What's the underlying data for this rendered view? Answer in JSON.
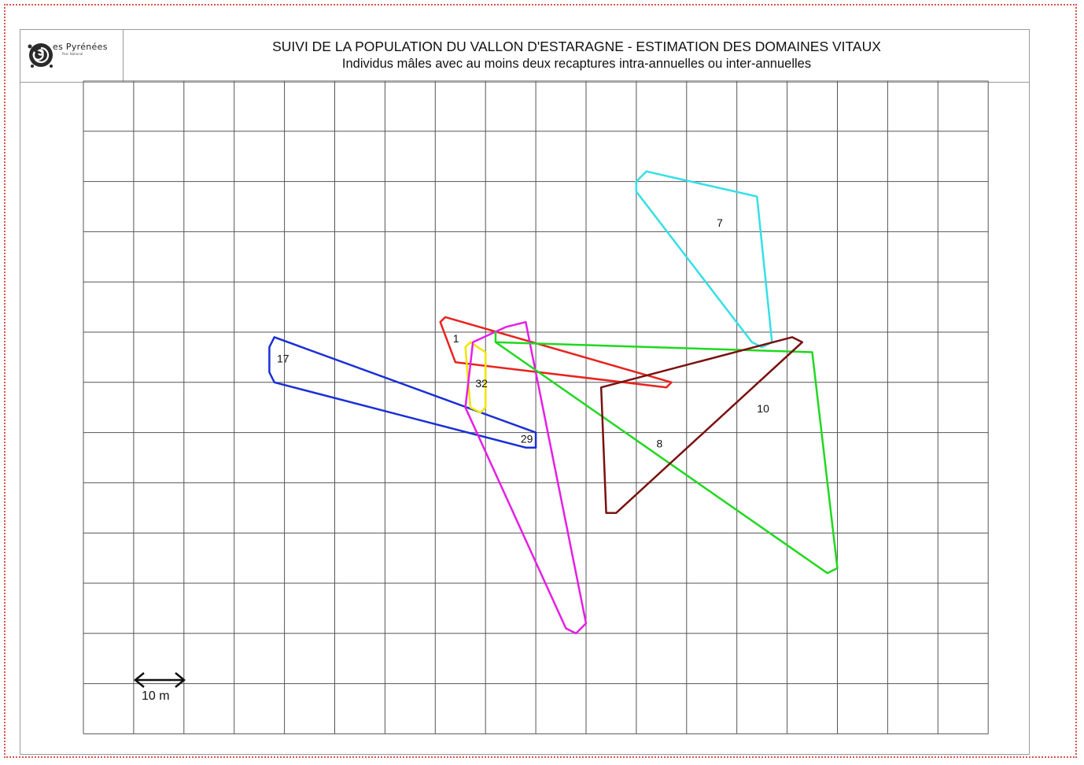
{
  "header": {
    "title": "SUIVI DE LA POPULATION DU VALLON D'ESTARAGNE - ESTIMATION DES DOMAINES VITAUX",
    "subtitle": "Individus mâles avec au moins deux recaptures intra-annuelles ou inter-annuelles",
    "logo_text": "es Pyrénées",
    "logo_subtext": "Parc National"
  },
  "map": {
    "scale_bar": {
      "label": "10 m",
      "meters": 10
    },
    "grid": {
      "columns": 18,
      "rows": 13,
      "color": "#555555"
    },
    "home_ranges": [
      {
        "id": "7",
        "label": "7",
        "color": "#33e0e6",
        "points": [
          [
            11.0,
            2.0
          ],
          [
            11.2,
            1.8
          ],
          [
            13.4,
            2.3
          ],
          [
            13.7,
            5.2
          ],
          [
            13.5,
            5.3
          ],
          [
            13.3,
            5.2
          ],
          [
            11.0,
            2.2
          ]
        ]
      },
      {
        "id": "1",
        "label": "1",
        "color": "#e8231f",
        "points": [
          [
            7.1,
            4.8
          ],
          [
            7.2,
            4.7
          ],
          [
            11.7,
            6.0
          ],
          [
            11.6,
            6.1
          ],
          [
            7.4,
            5.6
          ],
          [
            7.1,
            4.8
          ]
        ]
      },
      {
        "id": "17",
        "label": "17",
        "color": "#1a2fd6",
        "points": [
          [
            3.7,
            5.3
          ],
          [
            3.8,
            5.1
          ],
          [
            9.0,
            7.0
          ],
          [
            9.0,
            7.3
          ],
          [
            8.8,
            7.3
          ],
          [
            3.8,
            6.0
          ],
          [
            3.7,
            5.8
          ],
          [
            3.7,
            5.3
          ]
        ]
      },
      {
        "id": "32",
        "label": "32",
        "color": "#f2e400",
        "points": [
          [
            7.6,
            5.3
          ],
          [
            7.7,
            5.2
          ],
          [
            8.0,
            5.4
          ],
          [
            8.0,
            6.5
          ],
          [
            7.9,
            6.6
          ],
          [
            7.7,
            6.5
          ],
          [
            7.6,
            5.3
          ]
        ]
      },
      {
        "id": "29",
        "label": "29",
        "color": "#e61ee6",
        "points": [
          [
            7.75,
            5.2
          ],
          [
            8.4,
            4.9
          ],
          [
            8.8,
            4.8
          ],
          [
            10.0,
            10.8
          ],
          [
            9.8,
            11.0
          ],
          [
            9.6,
            10.9
          ],
          [
            7.6,
            6.5
          ],
          [
            7.75,
            5.2
          ]
        ]
      },
      {
        "id": "10",
        "label": "10",
        "color": "#20d820",
        "points": [
          [
            8.2,
            5.0
          ],
          [
            8.2,
            5.2
          ],
          [
            14.5,
            5.4
          ],
          [
            15.0,
            9.7
          ],
          [
            14.8,
            9.8
          ],
          [
            8.2,
            5.2
          ]
        ]
      },
      {
        "id": "8",
        "label": "8",
        "color": "#7a1010",
        "points": [
          [
            10.3,
            6.1
          ],
          [
            14.1,
            5.1
          ],
          [
            14.3,
            5.2
          ],
          [
            10.6,
            8.6
          ],
          [
            10.4,
            8.6
          ],
          [
            10.3,
            6.1
          ]
        ]
      }
    ],
    "label_positions": [
      {
        "id": "7",
        "x": 12.6,
        "y": 2.9
      },
      {
        "id": "1",
        "x": 7.35,
        "y": 5.2
      },
      {
        "id": "17",
        "x": 3.85,
        "y": 5.6
      },
      {
        "id": "32",
        "x": 7.8,
        "y": 6.1
      },
      {
        "id": "29",
        "x": 8.7,
        "y": 7.2
      },
      {
        "id": "10",
        "x": 13.4,
        "y": 6.6
      },
      {
        "id": "8",
        "x": 11.4,
        "y": 7.3
      }
    ]
  }
}
